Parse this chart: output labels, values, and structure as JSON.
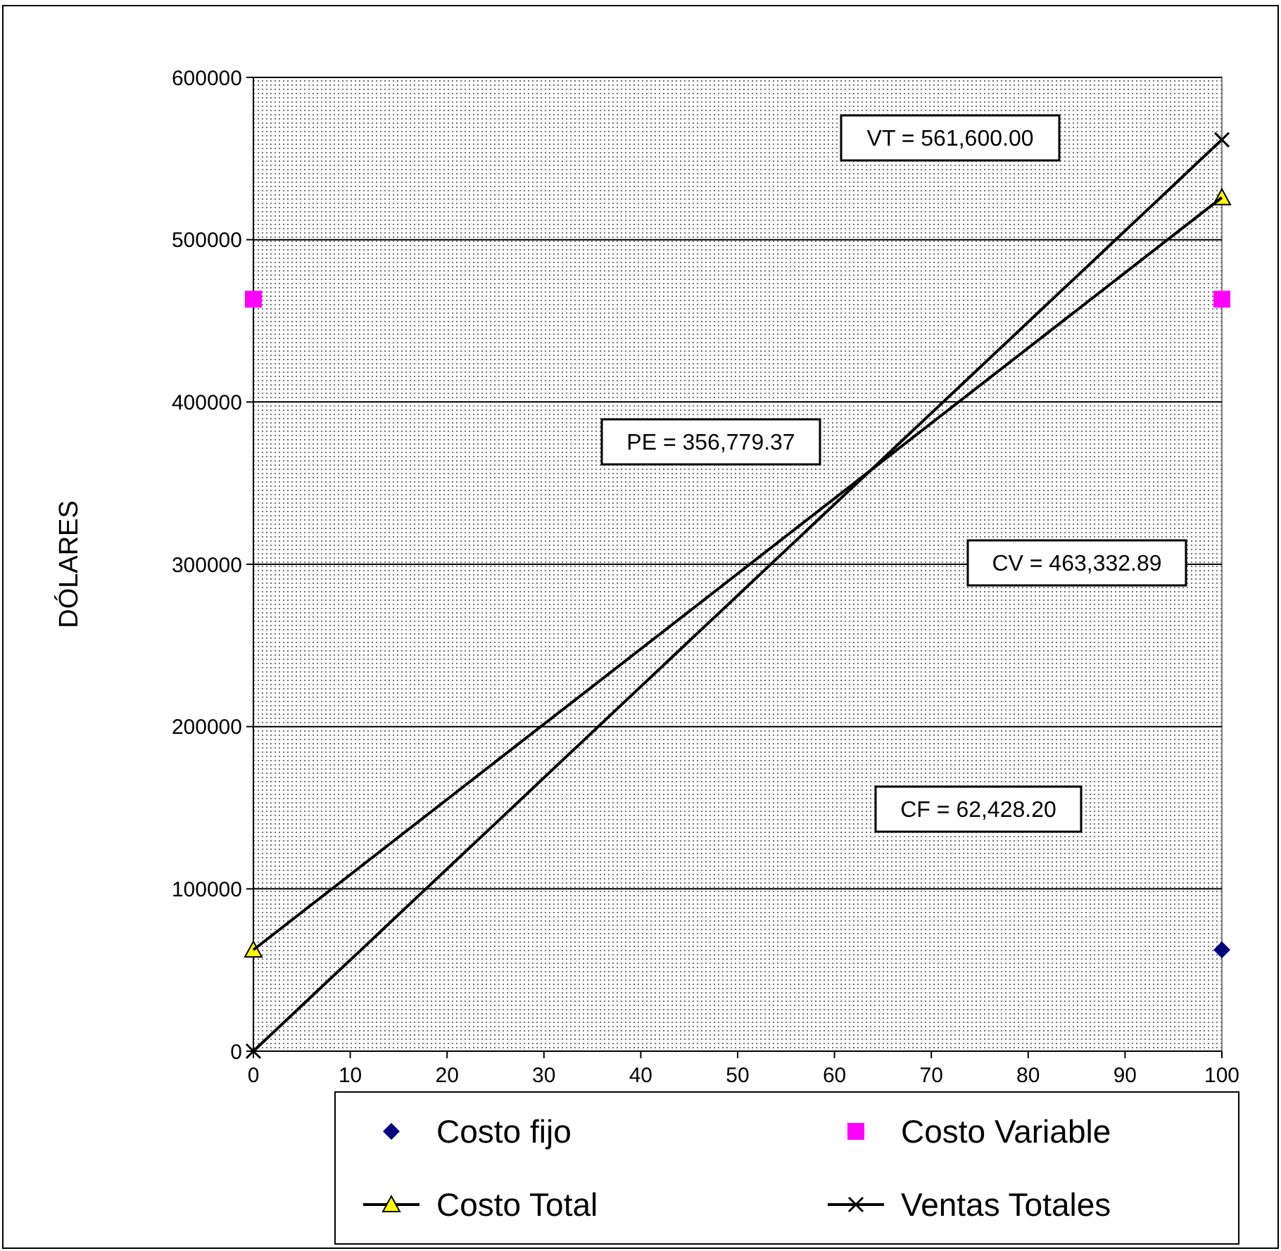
{
  "chart_data": {
    "type": "line",
    "ylabel": "DÓLARES",
    "x": [
      0,
      100
    ],
    "xlim": [
      0,
      100
    ],
    "xticks": [
      0,
      10,
      20,
      30,
      40,
      50,
      60,
      70,
      80,
      90,
      100
    ],
    "ylim": [
      0,
      600000
    ],
    "yticks": [
      0,
      100000,
      200000,
      300000,
      400000,
      500000,
      600000
    ],
    "grid": "y",
    "legend": "bottom",
    "series": [
      {
        "name": "Costo fijo",
        "type": "scatter",
        "marker": "diamond",
        "color": "#000080",
        "values": [
          null,
          62428.2
        ]
      },
      {
        "name": "Costo Variable",
        "type": "scatter",
        "marker": "square",
        "color": "#ff00ff",
        "values": [
          463332.89,
          463332.89
        ]
      },
      {
        "name": "Costo Total",
        "marker": "triangle",
        "color": "#000000",
        "values": [
          62428.2,
          526000
        ]
      },
      {
        "name": "Ventas Totales",
        "marker": "cross",
        "color": "#000000",
        "values": [
          0,
          561600
        ]
      }
    ],
    "annotations": [
      "VT = 561,600.00",
      "PE = 356,779.37",
      "CV = 463,332.89",
      "CF = 62,428.20"
    ]
  }
}
